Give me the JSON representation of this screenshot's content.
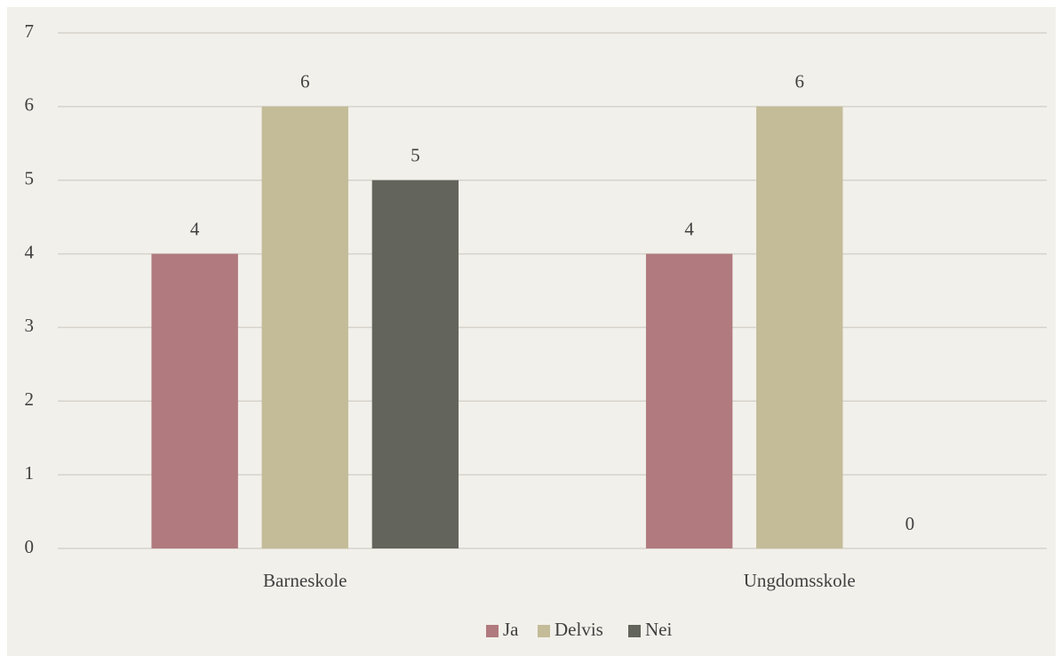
{
  "chart_data": {
    "type": "bar",
    "categories": [
      "Barneskole",
      "Ungdomsskole"
    ],
    "series": [
      {
        "name": "Ja",
        "color": "#b07a7e",
        "values": [
          4,
          4
        ]
      },
      {
        "name": "Delvis",
        "color": "#c4bc98",
        "values": [
          6,
          6
        ]
      },
      {
        "name": "Nei",
        "color": "#63645b",
        "values": [
          5,
          0
        ]
      }
    ],
    "ylim": [
      0,
      7
    ],
    "yticks": [
      0,
      1,
      2,
      3,
      4,
      5,
      6,
      7
    ],
    "grid": true,
    "legend": "bottom"
  }
}
